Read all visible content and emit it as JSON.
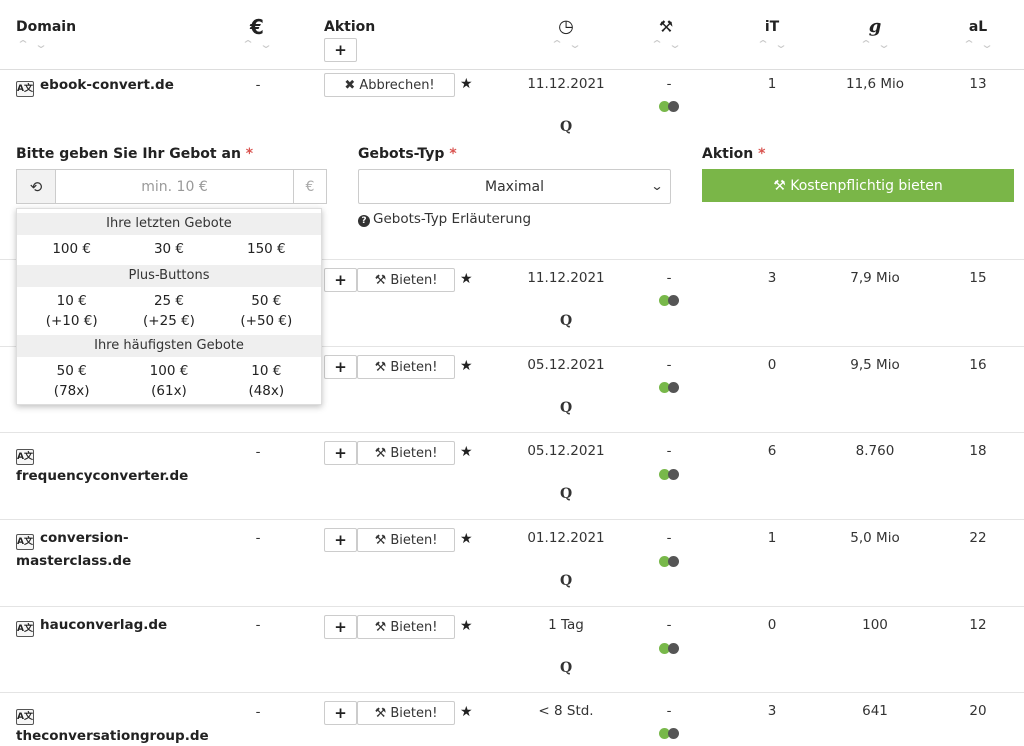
{
  "header": {
    "domain": "Domain",
    "price_icon": "euro-icon",
    "price_symbol": "€",
    "action": "Aktion",
    "add_label": "+",
    "clock_icon": "clock-icon",
    "clock_symbol": "◷",
    "hammer_icon": "hammer-icon",
    "hammer_symbol": "⚒",
    "it": "iT",
    "google_icon": "google-icon",
    "google_symbol": "g",
    "al": "aL",
    "sort_up": "^",
    "sort_down": "v"
  },
  "rows": [
    {
      "domain": "ebook-convert.de",
      "price": "-",
      "action": "✖ Abbrechen!",
      "date": "11.12.2021",
      "q": "Q",
      "status": "-",
      "it": "1",
      "google": "11,6 Mio",
      "al": "13"
    },
    {
      "domain": "",
      "price": "",
      "action": "⚒ Bieten!",
      "date": "11.12.2021",
      "q": "Q",
      "status": "-",
      "it": "3",
      "google": "7,9 Mio",
      "al": "15"
    },
    {
      "domain": "",
      "price": "",
      "action": "⚒ Bieten!",
      "date": "05.12.2021",
      "q": "Q",
      "status": "-",
      "it": "0",
      "google": "9,5 Mio",
      "al": "16"
    },
    {
      "domain": "frequencyconverter.de",
      "price": "-",
      "action": "⚒ Bieten!",
      "date": "05.12.2021",
      "q": "Q",
      "status": "-",
      "it": "6",
      "google": "8.760",
      "al": "18"
    },
    {
      "domain_line1": "conversion-",
      "domain_line2": "masterclass.de",
      "price": "-",
      "action": "⚒ Bieten!",
      "date": "01.12.2021",
      "q": "Q",
      "status": "-",
      "it": "1",
      "google": "5,0 Mio",
      "al": "22"
    },
    {
      "domain": "hauconverlag.de",
      "price": "-",
      "action": "⚒ Bieten!",
      "date": "1 Tag",
      "q": "Q",
      "status": "-",
      "it": "0",
      "google": "100",
      "al": "12"
    },
    {
      "domain": "theconversationgroup.de",
      "price": "-",
      "action": "⚒ Bieten!",
      "date": "< 8 Std.",
      "q": "Q",
      "status": "-",
      "it": "3",
      "google": "641",
      "al": "20"
    }
  ],
  "row_labels": {
    "plus": "+",
    "star": "★",
    "domain_icon": "dictionary-icon",
    "domain_icon_text": "A文"
  },
  "bid_form": {
    "amount_label": "Bitte geben Sie Ihr Gebot an",
    "required": "*",
    "amount_placeholder": "min. 10 €",
    "history_icon": "history-icon",
    "history_symbol": "⟲",
    "currency": "€",
    "type_label": "Gebots-Typ",
    "type_value": "Maximal",
    "chevron": "⌄",
    "help_icon": "question-icon",
    "help_symbol": "?",
    "help_text": "Gebots-Typ Erläuterung",
    "action_label": "Aktion",
    "submit_label": "⚒ Kostenpflichtig bieten"
  },
  "dropdown": {
    "sections": [
      {
        "title": "Ihre letzten Gebote",
        "items": [
          [
            "100 €",
            ""
          ],
          [
            "30 €",
            ""
          ],
          [
            "150 €",
            ""
          ]
        ]
      },
      {
        "title": "Plus-Buttons",
        "items": [
          [
            "10 €",
            "(+10 €)"
          ],
          [
            "25 €",
            "(+25 €)"
          ],
          [
            "50 €",
            "(+50 €)"
          ]
        ]
      },
      {
        "title": "Ihre häufigsten Gebote",
        "items": [
          [
            "50 €",
            "(78x)"
          ],
          [
            "100 €",
            "(61x)"
          ],
          [
            "10 €",
            "(48x)"
          ]
        ]
      }
    ]
  },
  "colors": {
    "accent_green": "#7ab648",
    "required_red": "#d9534f"
  }
}
